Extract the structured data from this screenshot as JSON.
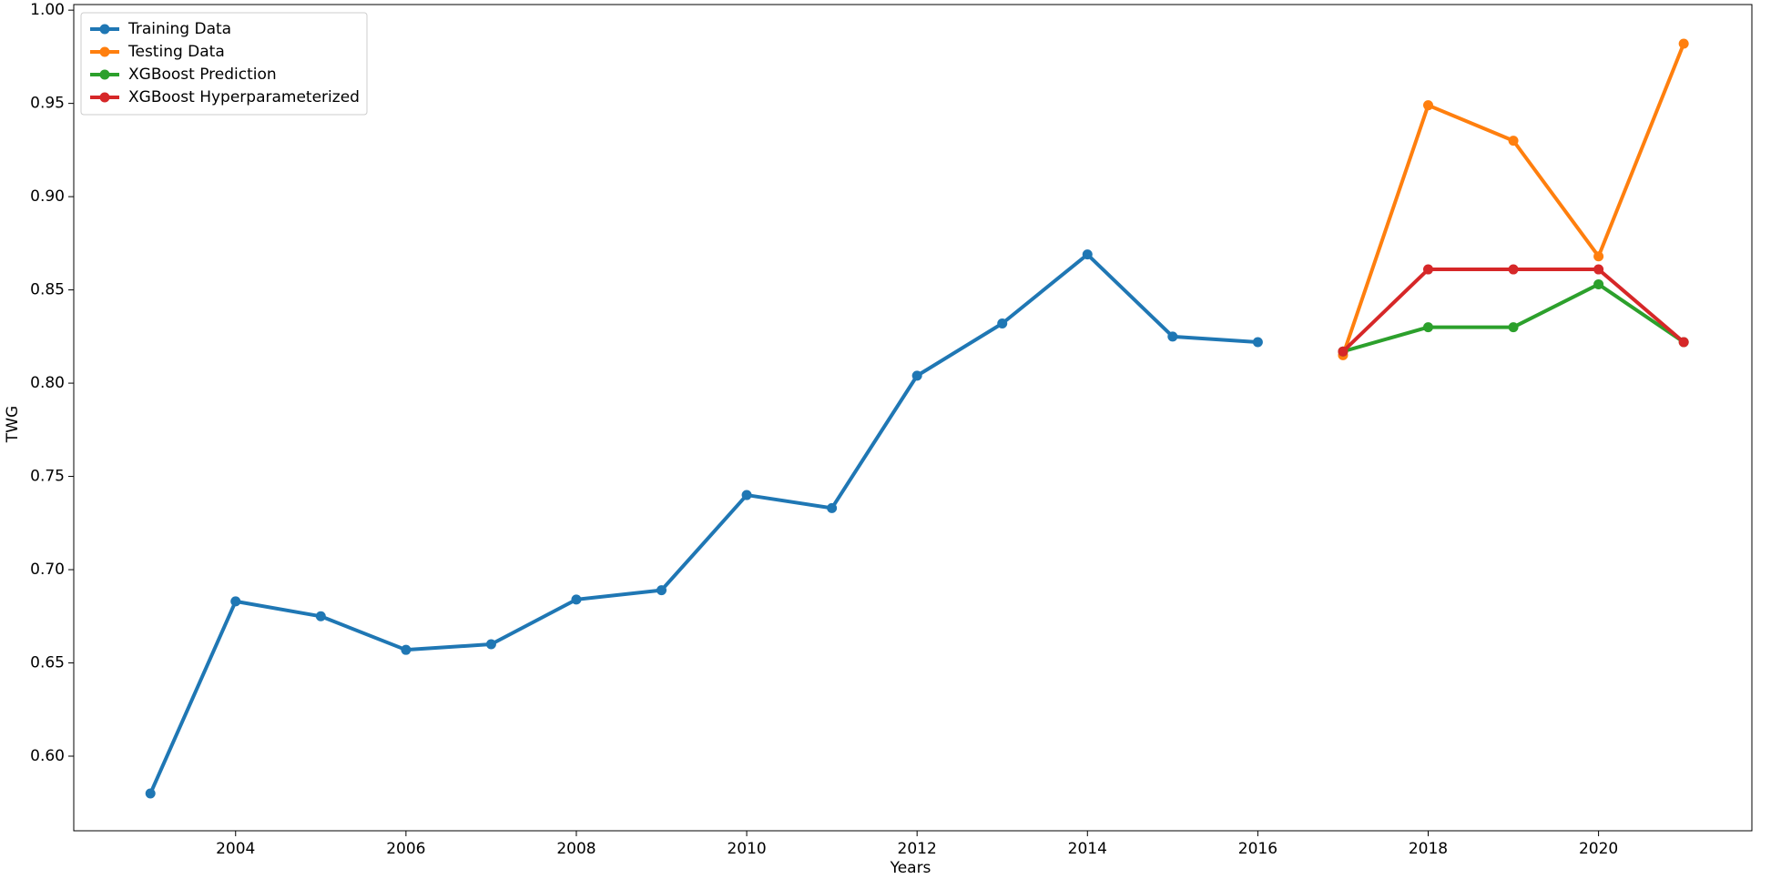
{
  "chart_data": {
    "type": "line",
    "x_label": "Years",
    "y_label": "TWG",
    "series": [
      {
        "name": "Training Data",
        "color": "#1f77b4",
        "x": [
          2003,
          2004,
          2005,
          2006,
          2007,
          2008,
          2009,
          2010,
          2011,
          2012,
          2013,
          2014,
          2015,
          2016
        ],
        "values": [
          0.58,
          0.683,
          0.675,
          0.657,
          0.66,
          0.684,
          0.689,
          0.74,
          0.733,
          0.804,
          0.832,
          0.869,
          0.825,
          0.822
        ]
      },
      {
        "name": "Testing Data",
        "color": "#ff7f0e",
        "x": [
          2017,
          2018,
          2019,
          2020,
          2021
        ],
        "values": [
          0.815,
          0.949,
          0.93,
          0.868,
          0.982
        ]
      },
      {
        "name": "XGBoost Prediction",
        "color": "#2ca02c",
        "x": [
          2017,
          2018,
          2019,
          2020,
          2021
        ],
        "values": [
          0.817,
          0.83,
          0.83,
          0.853,
          0.822
        ]
      },
      {
        "name": "XGBoost Hyperparameterized",
        "color": "#d62728",
        "x": [
          2017,
          2018,
          2019,
          2020,
          2021
        ],
        "values": [
          0.817,
          0.861,
          0.861,
          0.861,
          0.822
        ]
      }
    ],
    "xlim": [
      2002.1,
      2021.8
    ],
    "xticks": [
      2004,
      2006,
      2008,
      2010,
      2012,
      2014,
      2016,
      2018,
      2020
    ],
    "ylim": [
      0.56,
      1.003
    ],
    "yticks": [
      {
        "value": 0.6,
        "label": "0.60"
      },
      {
        "value": 0.65,
        "label": "0.65"
      },
      {
        "value": 0.7,
        "label": "0.70"
      },
      {
        "value": 0.75,
        "label": "0.75"
      },
      {
        "value": 0.8,
        "label": "0.80"
      },
      {
        "value": 0.85,
        "label": "0.85"
      },
      {
        "value": 0.9,
        "label": "0.90"
      },
      {
        "value": 0.95,
        "label": "0.95"
      },
      {
        "value": 1.0,
        "label": "1.00"
      }
    ],
    "legend": "upper left",
    "grid": false
  }
}
